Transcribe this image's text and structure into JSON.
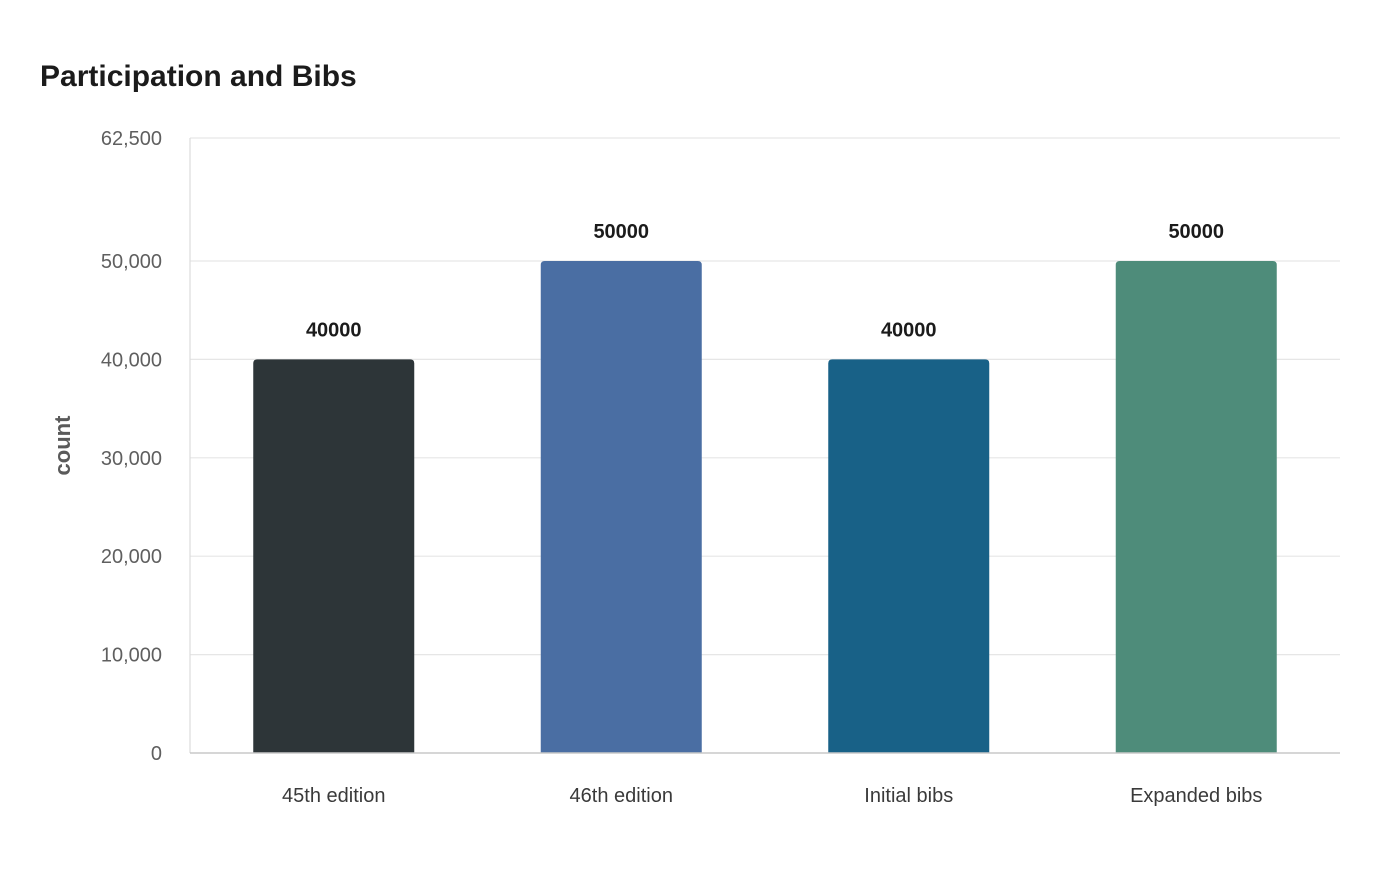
{
  "chart_data": {
    "type": "bar",
    "title": "Participation and Bibs",
    "xlabel": "",
    "ylabel": "count",
    "categories": [
      "45th edition",
      "46th edition",
      "Initial bibs",
      "Expanded bibs"
    ],
    "values": [
      40000,
      50000,
      40000,
      50000
    ],
    "value_labels": [
      "40000",
      "50000",
      "40000",
      "50000"
    ],
    "colors": [
      "#2d3538",
      "#4a6ea3",
      "#186187",
      "#4e8c7a"
    ],
    "ylim": [
      0,
      62500
    ],
    "yticks": [
      0,
      10000,
      20000,
      30000,
      40000,
      50000,
      62500
    ],
    "ytick_labels": [
      "0",
      "10,000",
      "20,000",
      "30,000",
      "40,000",
      "50,000",
      "62,500"
    ],
    "grid": true,
    "legend": "none"
  }
}
